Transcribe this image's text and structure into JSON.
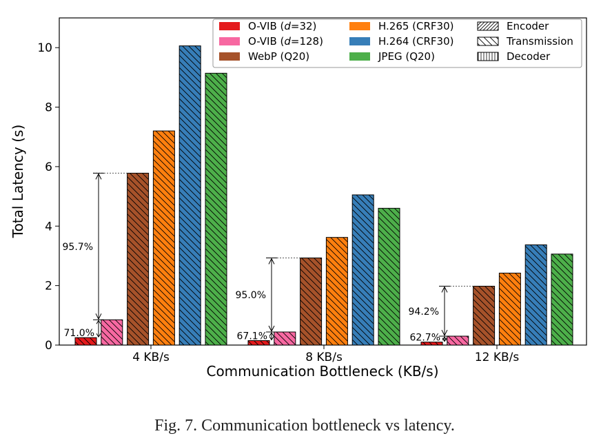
{
  "chart_data": {
    "type": "bar",
    "title": "",
    "xlabel": "Communication Bottleneck (KB/s)",
    "ylabel": "Total Latency (s)",
    "ylim": [
      0,
      11
    ],
    "yticks": [
      0,
      2,
      4,
      6,
      8,
      10
    ],
    "grid": false,
    "legend_position": "top-right",
    "categories": [
      "4 KB/s",
      "8 KB/s",
      "12 KB/s"
    ],
    "series": [
      {
        "name": "O-VIB (d=32)",
        "label_pre": "O-VIB (",
        "label_var": "d",
        "label_post": "=32)",
        "color": "#e41a1c",
        "values": [
          0.25,
          0.15,
          0.1
        ]
      },
      {
        "name": "O-VIB (d=128)",
        "label_pre": "O-VIB (",
        "label_var": "d",
        "label_post": "=128)",
        "color": "#f768a1",
        "values": [
          0.85,
          0.44,
          0.3
        ]
      },
      {
        "name": "WebP (Q20)",
        "color": "#a6522a",
        "values": [
          5.78,
          2.93,
          1.98
        ]
      },
      {
        "name": "H.265 (CRF30)",
        "color": "#ff7f0e",
        "values": [
          7.2,
          3.62,
          2.42
        ]
      },
      {
        "name": "H.264 (CRF30)",
        "color": "#377eb8",
        "values": [
          10.06,
          5.05,
          3.37
        ]
      },
      {
        "name": "JPEG (Q20)",
        "color": "#4daf4a",
        "values": [
          9.14,
          4.6,
          3.06
        ]
      }
    ],
    "hatch_legend": [
      "Encoder",
      "Transmission",
      "Decoder"
    ],
    "annotations": [
      {
        "category": "4 KB/s",
        "big": "95.7%",
        "small": "71.0%"
      },
      {
        "category": "8 KB/s",
        "big": "95.0%",
        "small": "67.1%"
      },
      {
        "category": "12 KB/s",
        "big": "94.2%",
        "small": "62.7%"
      }
    ]
  },
  "caption": "Fig. 7.  Communication bottleneck vs latency."
}
